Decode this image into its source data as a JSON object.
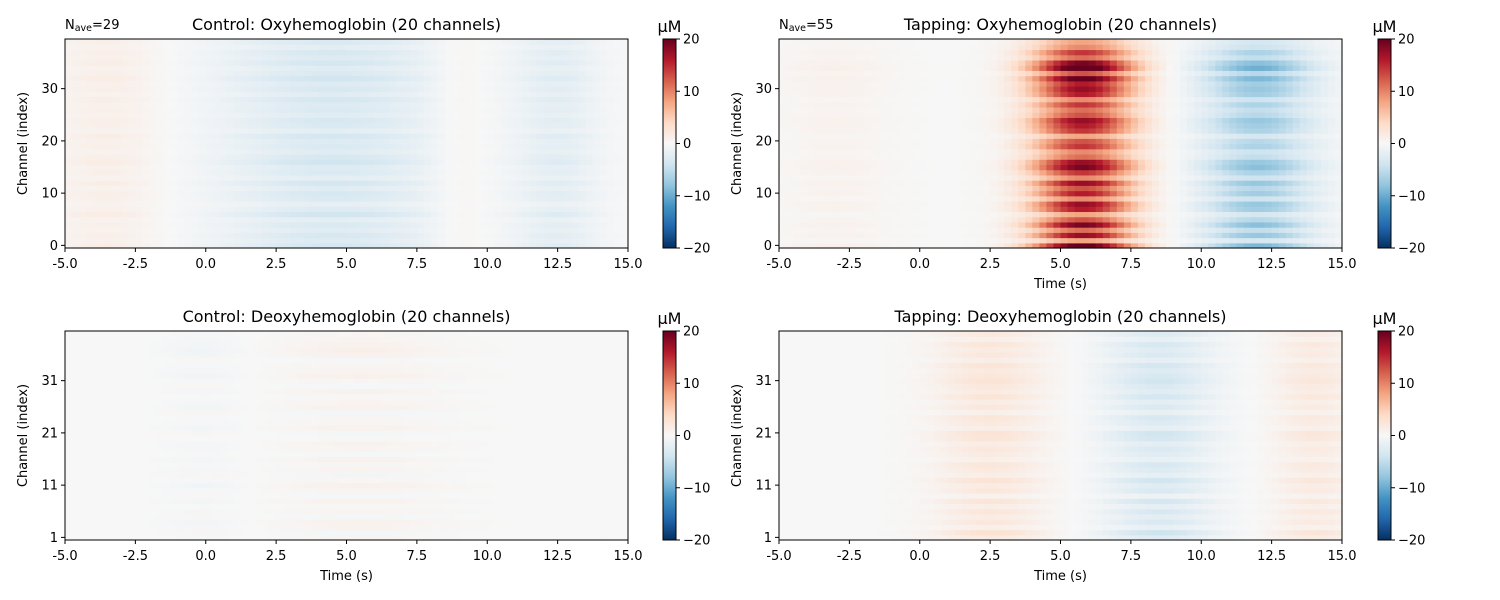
{
  "figure": {
    "background": "#ffffff"
  },
  "colormap": {
    "name": "RdBu_r",
    "stops": [
      "#053061",
      "#2166ac",
      "#4393c3",
      "#92c5de",
      "#d1e5f0",
      "#f7f7f7",
      "#fddbc7",
      "#f4a582",
      "#d6604d",
      "#b2182b",
      "#67001f"
    ]
  },
  "chart_data": [
    {
      "type": "heatmap",
      "title": "Control: Oxyhemoglobin (20 channels)",
      "nave_label": "N",
      "nave_sub": "ave",
      "nave_value": "=29",
      "xlabel": "",
      "ylabel": "Channel (index)",
      "xlim": [
        -5.0,
        15.0
      ],
      "xticks": [
        "-5.0",
        "-2.5",
        "0.0",
        "2.5",
        "5.0",
        "7.5",
        "10.0",
        "12.5",
        "15.0"
      ],
      "ylim": [
        -0.5,
        39.5
      ],
      "yticks": [
        {
          "value": 0,
          "label": "0"
        },
        {
          "value": 10,
          "label": "10"
        },
        {
          "value": 20,
          "label": "20"
        },
        {
          "value": 30,
          "label": "30"
        }
      ],
      "n_rows": 40,
      "colorbar": {
        "unit": "µM",
        "vmin": -20,
        "vmax": 20,
        "ticks": [
          "20",
          "10",
          "0",
          "−10",
          "−20"
        ]
      },
      "pattern": {
        "bumps": [
          {
            "t": 4.5,
            "w": 4.0,
            "a": -3.0
          },
          {
            "t": 12.5,
            "w": 1.5,
            "a": -2.0
          },
          {
            "t": -3.5,
            "w": 2.0,
            "a": 1.2
          },
          {
            "t": 9.0,
            "w": 1.0,
            "a": 1.0
          }
        ],
        "row_weights": [
          1.2,
          0.9,
          1.1,
          0.8,
          1.0,
          0.7,
          1.3,
          0.9,
          0.6,
          1.0,
          1.1,
          0.8,
          1.2,
          0.7,
          1.0,
          0.9,
          1.3,
          1.1,
          0.8,
          1.0,
          0.9,
          1.2,
          0.7,
          1.0,
          1.1,
          0.8,
          1.0,
          0.9,
          1.2,
          0.8,
          1.1,
          0.9,
          1.3,
          1.0,
          0.8,
          1.2,
          0.9,
          1.1,
          0.7,
          1.0
        ]
      }
    },
    {
      "type": "heatmap",
      "title": "Tapping: Oxyhemoglobin (20 channels)",
      "nave_label": "N",
      "nave_sub": "ave",
      "nave_value": "=55",
      "xlabel": "Time (s)",
      "ylabel": "Channel (index)",
      "xlim": [
        -5.0,
        15.0
      ],
      "xticks": [
        "-5.0",
        "-2.5",
        "0.0",
        "2.5",
        "5.0",
        "7.5",
        "10.0",
        "12.5",
        "15.0"
      ],
      "ylim": [
        -0.5,
        39.5
      ],
      "yticks": [
        {
          "value": 0,
          "label": "0"
        },
        {
          "value": 10,
          "label": "10"
        },
        {
          "value": 20,
          "label": "20"
        },
        {
          "value": 30,
          "label": "30"
        }
      ],
      "n_rows": 40,
      "colorbar": {
        "unit": "µM",
        "vmin": -20,
        "vmax": 20,
        "ticks": [
          "20",
          "10",
          "0",
          "−10",
          "−20"
        ]
      },
      "pattern": {
        "bumps": [
          {
            "t": 5.8,
            "w": 1.8,
            "a": 16.0
          },
          {
            "t": 12.0,
            "w": 2.0,
            "a": -7.0
          },
          {
            "t": -3.0,
            "w": 2.0,
            "a": 0.8
          }
        ],
        "row_weights": [
          1.3,
          0.5,
          1.1,
          0.7,
          1.2,
          0.8,
          0.5,
          1.0,
          1.1,
          0.6,
          1.0,
          0.8,
          1.1,
          0.6,
          0.9,
          1.2,
          1.1,
          0.7,
          0.6,
          0.9,
          0.8,
          0.5,
          0.9,
          1.0,
          1.1,
          0.8,
          0.7,
          0.9,
          0.6,
          1.0,
          1.1,
          1.0,
          1.3,
          0.8,
          1.4,
          1.2,
          0.7,
          0.9,
          0.6,
          0.5
        ]
      }
    },
    {
      "type": "heatmap",
      "title": "Control: Deoxyhemoglobin (20 channels)",
      "xlabel": "Time (s)",
      "ylabel": "Channel (index)",
      "xlim": [
        -5.0,
        15.0
      ],
      "xticks": [
        "-5.0",
        "-2.5",
        "0.0",
        "2.5",
        "5.0",
        "7.5",
        "10.0",
        "12.5",
        "15.0"
      ],
      "ylim": [
        0.5,
        40.5
      ],
      "yticks": [
        {
          "value": 1,
          "label": "1"
        },
        {
          "value": 11,
          "label": "11"
        },
        {
          "value": 21,
          "label": "21"
        },
        {
          "value": 31,
          "label": "31"
        }
      ],
      "n_rows": 40,
      "colorbar": {
        "unit": "µM",
        "vmin": -20,
        "vmax": 20,
        "ticks": [
          "20",
          "10",
          "0",
          "−10",
          "−20"
        ]
      },
      "pattern": {
        "bumps": [
          {
            "t": 5.5,
            "w": 3.0,
            "a": 0.9
          },
          {
            "t": 0.0,
            "w": 1.5,
            "a": -0.6
          }
        ],
        "row_weights": [
          0.3,
          -0.5,
          0.8,
          1.0,
          -0.4,
          0.6,
          0.2,
          0.9,
          -0.3,
          0.5,
          1.1,
          0.4,
          -0.6,
          0.7,
          0.3,
          0.9,
          -0.2,
          0.6,
          0.8,
          0.1,
          -0.4,
          0.9,
          0.5,
          0.3,
          -0.5,
          1.0,
          0.6,
          0.2,
          0.8,
          -0.3,
          0.4,
          1.2,
          0.7,
          0.5,
          -0.2,
          1.0,
          1.3,
          0.9,
          0.6,
          0.4
        ]
      }
    },
    {
      "type": "heatmap",
      "title": "Tapping: Deoxyhemoglobin (20 channels)",
      "xlabel": "Time (s)",
      "ylabel": "Channel (index)",
      "xlim": [
        -5.0,
        15.0
      ],
      "xticks": [
        "-5.0",
        "-2.5",
        "0.0",
        "2.5",
        "5.0",
        "7.5",
        "10.0",
        "12.5",
        "15.0"
      ],
      "ylim": [
        0.5,
        40.5
      ],
      "yticks": [
        {
          "value": 1,
          "label": "1"
        },
        {
          "value": 11,
          "label": "11"
        },
        {
          "value": 21,
          "label": "21"
        },
        {
          "value": 31,
          "label": "31"
        }
      ],
      "n_rows": 40,
      "colorbar": {
        "unit": "µM",
        "vmin": -20,
        "vmax": 20,
        "ticks": [
          "20",
          "10",
          "0",
          "−10",
          "−20"
        ]
      },
      "pattern": {
        "bumps": [
          {
            "t": 2.5,
            "w": 2.0,
            "a": 2.2
          },
          {
            "t": 8.5,
            "w": 2.0,
            "a": -3.0
          },
          {
            "t": 14.0,
            "w": 1.5,
            "a": 1.8
          }
        ],
        "row_weights": [
          0.8,
          1.4,
          0.5,
          1.0,
          0.7,
          1.1,
          0.6,
          1.2,
          0.4,
          1.0,
          0.8,
          1.3,
          0.6,
          0.9,
          1.1,
          0.5,
          0.8,
          1.0,
          0.7,
          1.2,
          1.3,
          0.6,
          0.9,
          1.1,
          0.5,
          1.0,
          0.7,
          1.2,
          0.8,
          1.0,
          1.3,
          1.1,
          0.9,
          1.2,
          0.6,
          1.0,
          0.8,
          1.1,
          0.5,
          0.9
        ]
      }
    }
  ]
}
